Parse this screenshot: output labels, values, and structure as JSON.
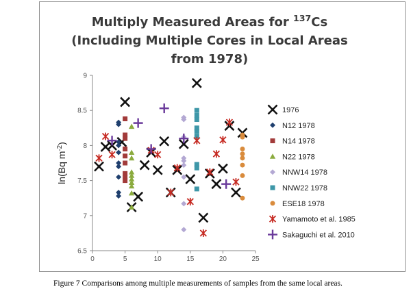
{
  "chart_data": {
    "type": "scatter",
    "title_lines": [
      {
        "text": "Multiply Measured Areas  for ",
        "sup": "137",
        "tail": "Cs"
      },
      {
        "text": "(Including Multiple Cores in Local Areas",
        "sup": "",
        "tail": ""
      },
      {
        "text": "from 1978)",
        "sup": "",
        "tail": ""
      }
    ],
    "ylabel": {
      "text": "ln(Bq m",
      "sup": "-2",
      "tail": ")"
    },
    "xlabel": "",
    "xlim": [
      0,
      25
    ],
    "ylim": [
      6.5,
      9
    ],
    "xticks": [
      "0",
      "5",
      "10",
      "15",
      "20",
      "25"
    ],
    "yticks": [
      "6.5",
      "7",
      "7.5",
      "8",
      "8.5",
      "9"
    ],
    "grid": false,
    "legend_position": "right",
    "series": [
      {
        "name": "1976",
        "marker": "x-big",
        "color": "#111111",
        "x": [
          1,
          2,
          3,
          4.5,
          5,
          6,
          7,
          8,
          9,
          10,
          11,
          12,
          13,
          14,
          15,
          16,
          17,
          18,
          19,
          20,
          21,
          22,
          23
        ],
        "y": [
          7.7,
          7.98,
          8.0,
          8.05,
          8.62,
          7.12,
          7.27,
          7.72,
          7.9,
          7.65,
          8.06,
          7.33,
          7.65,
          8.02,
          7.52,
          8.89,
          6.97,
          7.6,
          7.45,
          7.67,
          8.28,
          7.33,
          8.18
        ]
      },
      {
        "name": "N12 1978",
        "marker": "diamond",
        "color": "#1f3f6e",
        "x": [
          4,
          4,
          4,
          4,
          4,
          4,
          4,
          4,
          4,
          4
        ],
        "y": [
          8.33,
          8.3,
          8.05,
          8.0,
          7.9,
          7.75,
          7.7,
          7.55,
          7.33,
          7.28
        ]
      },
      {
        "name": "N14 1978",
        "marker": "square",
        "color": "#a23b3a",
        "x": [
          5,
          5,
          5,
          5,
          5,
          5,
          5,
          5,
          5
        ],
        "y": [
          8.38,
          8.15,
          8.1,
          7.95,
          7.85,
          7.75,
          7.6,
          7.55,
          7.5
        ]
      },
      {
        "name": "N22 1978",
        "marker": "triangle",
        "color": "#8bab3e",
        "x": [
          6,
          6,
          6,
          6,
          6,
          6,
          6,
          6,
          6,
          6
        ],
        "y": [
          8.27,
          7.9,
          7.82,
          7.62,
          7.57,
          7.52,
          7.47,
          7.42,
          7.32,
          7.12
        ]
      },
      {
        "name": "NNW14 1978",
        "marker": "diamond",
        "color": "#b3a8d3",
        "x": [
          14,
          14,
          14,
          14,
          14,
          14,
          14,
          14,
          14
        ],
        "y": [
          8.4,
          8.37,
          8.12,
          7.82,
          7.78,
          7.72,
          7.55,
          7.17,
          6.8
        ]
      },
      {
        "name": "NNW22 1978",
        "marker": "square",
        "color": "#3e97a8",
        "x": [
          16,
          16,
          16,
          16,
          16,
          16,
          16,
          16,
          16
        ],
        "y": [
          8.5,
          8.43,
          8.37,
          8.25,
          8.2,
          8.13,
          7.73,
          7.68,
          7.38
        ]
      },
      {
        "name": "ESE18 1978",
        "marker": "circle",
        "color": "#d98b3c",
        "x": [
          23,
          23,
          23,
          23,
          23,
          23,
          23,
          23
        ],
        "y": [
          8.15,
          8.12,
          7.95,
          7.88,
          7.82,
          7.72,
          7.57,
          7.25
        ]
      },
      {
        "name": "Yamamoto et al. 1985",
        "marker": "x-small",
        "color": "#c62a22",
        "x": [
          1,
          2,
          3,
          9,
          10,
          12,
          13,
          15,
          16,
          17,
          18,
          19,
          20,
          21,
          22
        ],
        "y": [
          7.82,
          8.13,
          7.87,
          7.93,
          7.87,
          7.33,
          7.68,
          7.2,
          8.07,
          6.75,
          7.62,
          7.88,
          8.08,
          8.33,
          7.48
        ]
      },
      {
        "name": "Sakaguchi et al. 2010",
        "marker": "plus",
        "color": "#6a3a9b",
        "x": [
          3,
          7,
          9,
          11,
          14,
          20.5
        ],
        "y": [
          8.07,
          8.32,
          7.95,
          8.53,
          8.1,
          7.45
        ]
      }
    ]
  },
  "caption": "Figure 7  Comparisons among multiple measurements of samples from the same local areas."
}
